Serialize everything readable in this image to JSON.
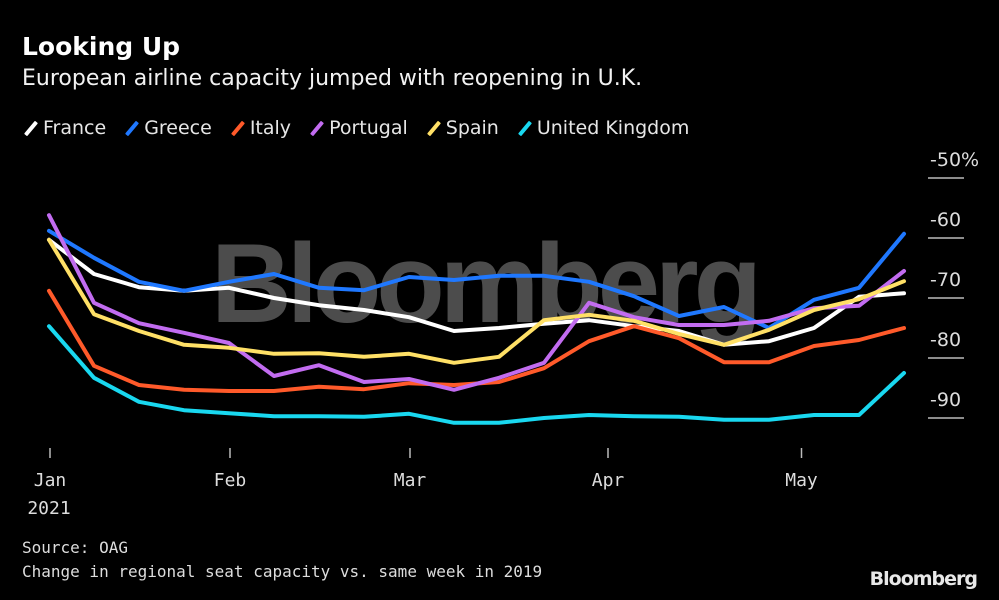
{
  "header": {
    "title": "Looking Up",
    "subtitle": "European airline capacity jumped with reopening in U.K."
  },
  "footer": {
    "source": "Source: OAG",
    "note": "Change in regional seat capacity vs. same week in 2019",
    "brand": "Bloomberg"
  },
  "watermark": "Bloomberg",
  "chart_data": {
    "type": "line",
    "title": "Looking Up",
    "subtitle": "European airline capacity jumped with reopening in U.K.",
    "xlabel": "",
    "ylabel": "Change in regional seat capacity vs. same week in 2019 (%)",
    "x_weeks": 20,
    "x_ticks": [
      {
        "label": "Jan",
        "week": 0
      },
      {
        "label": "Feb",
        "week": 4
      },
      {
        "label": "Mar",
        "week": 8
      },
      {
        "label": "Apr",
        "week": 12.4
      },
      {
        "label": "May",
        "week": 16.7
      }
    ],
    "x_year_label": "2021",
    "y_ticks": [
      {
        "value": -50,
        "label": "-50%"
      },
      {
        "value": -60,
        "label": "-60"
      },
      {
        "value": -70,
        "label": "-70"
      },
      {
        "value": -80,
        "label": "-80"
      },
      {
        "value": -90,
        "label": "-90"
      }
    ],
    "ylim": [
      -95,
      -50
    ],
    "grid": false,
    "legend_position": "top-left",
    "series": [
      {
        "name": "France",
        "color": "#ffffff",
        "values": [
          -60.3,
          -66.0,
          -68.2,
          -68.8,
          -68.3,
          -70.0,
          -71.2,
          -72.0,
          -73.2,
          -75.5,
          -75.0,
          -74.3,
          -73.7,
          -74.7,
          -75.5,
          -77.8,
          -77.2,
          -75.0,
          -69.8,
          -69.2
        ]
      },
      {
        "name": "Greece",
        "color": "#1f78ff",
        "values": [
          -58.8,
          -63.3,
          -67.3,
          -68.8,
          -67.3,
          -66.0,
          -68.3,
          -68.7,
          -66.5,
          -67.0,
          -66.3,
          -66.3,
          -67.3,
          -69.7,
          -73.0,
          -71.5,
          -75.0,
          -70.3,
          -68.3,
          -59.3
        ]
      },
      {
        "name": "Italy",
        "color": "#ff5a2a",
        "values": [
          -68.8,
          -81.3,
          -84.5,
          -85.3,
          -85.5,
          -85.5,
          -84.8,
          -85.2,
          -84.2,
          -84.5,
          -84.0,
          -81.7,
          -77.2,
          -74.7,
          -76.7,
          -80.7,
          -80.7,
          -78.0,
          -77.0,
          -75.0
        ]
      },
      {
        "name": "Portugal",
        "color": "#c26cf0",
        "values": [
          -56.2,
          -70.8,
          -74.2,
          -75.8,
          -77.5,
          -83.0,
          -81.2,
          -84.0,
          -83.5,
          -85.3,
          -83.3,
          -80.8,
          -70.8,
          -73.2,
          -74.5,
          -74.5,
          -73.8,
          -71.7,
          -71.3,
          -65.5
        ]
      },
      {
        "name": "Spain",
        "color": "#ffe066",
        "values": [
          -60.3,
          -72.7,
          -75.5,
          -77.8,
          -78.3,
          -79.3,
          -79.2,
          -79.8,
          -79.3,
          -80.8,
          -79.8,
          -73.7,
          -72.8,
          -73.8,
          -76.0,
          -77.8,
          -75.3,
          -72.0,
          -70.2,
          -67.2
        ]
      },
      {
        "name": "United Kingdom",
        "color": "#19d8f0",
        "values": [
          -74.7,
          -83.3,
          -87.3,
          -88.7,
          -89.2,
          -89.7,
          -89.7,
          -89.8,
          -89.3,
          -90.8,
          -90.8,
          -90.0,
          -89.5,
          -89.7,
          -89.8,
          -90.3,
          -90.3,
          -89.5,
          -89.5,
          -82.5
        ]
      }
    ]
  }
}
